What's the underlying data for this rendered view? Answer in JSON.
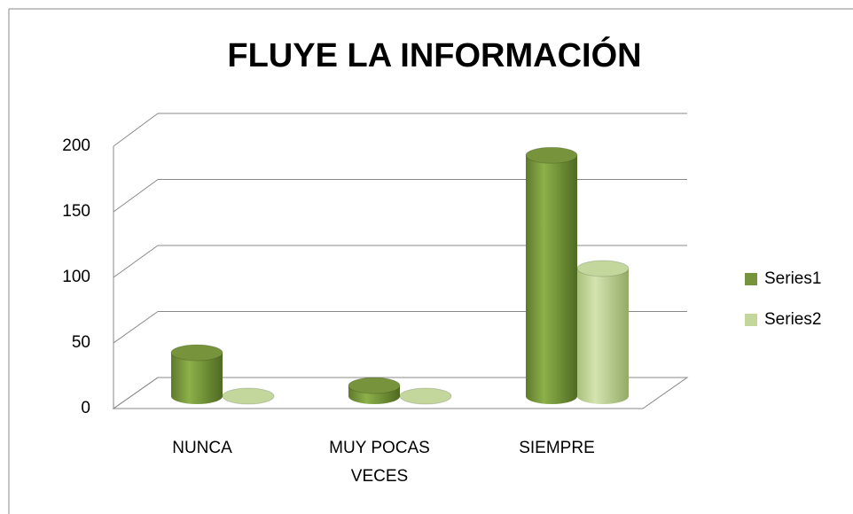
{
  "chart_data": {
    "type": "bar3d",
    "title": "FLUYE LA INFORMACIÓN",
    "categories": [
      "NUNCA",
      "MUY POCAS VECES",
      "SIEMPRE"
    ],
    "series": [
      {
        "name": "Series1",
        "color": "#77933c",
        "values": [
          33,
          8,
          183
        ]
      },
      {
        "name": "Series2",
        "color": "#c3d69b",
        "values": [
          0,
          0,
          97
        ]
      }
    ],
    "ylim": [
      0,
      200
    ],
    "yticks": [
      0,
      50,
      100,
      150,
      200
    ],
    "grid": true,
    "legend": "right"
  }
}
